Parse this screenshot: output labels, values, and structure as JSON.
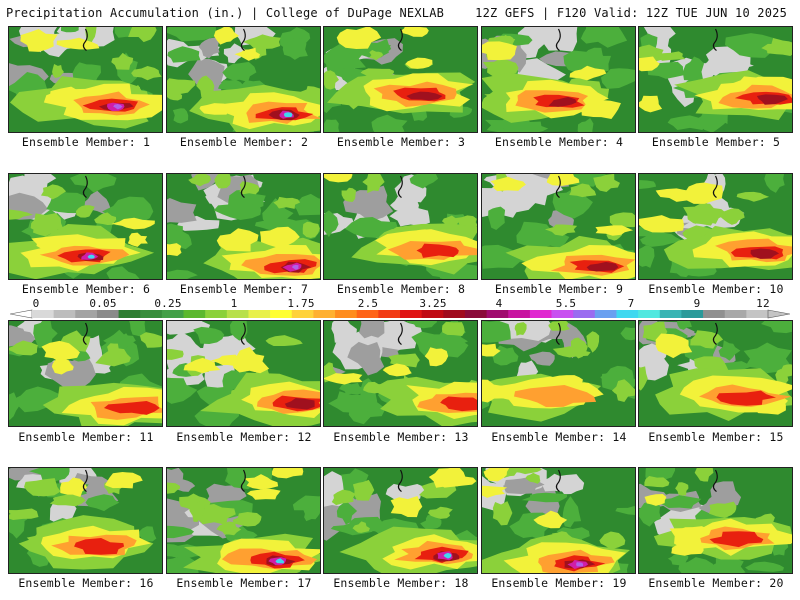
{
  "header": {
    "left": "Precipitation Accumulation (in.) | College of DuPage NEXLAB",
    "right": "12Z GEFS | F120 Valid: 12Z TUE JUN 10 2025"
  },
  "members": [
    {
      "label": "Ensemble Member: 1"
    },
    {
      "label": "Ensemble Member: 2"
    },
    {
      "label": "Ensemble Member: 3"
    },
    {
      "label": "Ensemble Member: 4"
    },
    {
      "label": "Ensemble Member: 5"
    },
    {
      "label": "Ensemble Member: 6"
    },
    {
      "label": "Ensemble Member: 7"
    },
    {
      "label": "Ensemble Member: 8"
    },
    {
      "label": "Ensemble Member: 9"
    },
    {
      "label": "Ensemble Member: 10"
    },
    {
      "label": "Ensemble Member: 11"
    },
    {
      "label": "Ensemble Member: 12"
    },
    {
      "label": "Ensemble Member: 13"
    },
    {
      "label": "Ensemble Member: 14"
    },
    {
      "label": "Ensemble Member: 15"
    },
    {
      "label": "Ensemble Member: 16"
    },
    {
      "label": "Ensemble Member: 17"
    },
    {
      "label": "Ensemble Member: 18"
    },
    {
      "label": "Ensemble Member: 19"
    },
    {
      "label": "Ensemble Member: 20"
    }
  ],
  "colorbar": {
    "tick_labels": [
      "0",
      "0.05",
      "0.25",
      "1",
      "1.75",
      "2.5",
      "3.25",
      "4",
      "5.5",
      "7",
      "9",
      "12"
    ],
    "colors": [
      "#d9d9d9",
      "#bdbdbd",
      "#a3a3a3",
      "#8a8a8a",
      "#2e7d32",
      "#388e3c",
      "#43a047",
      "#5cb82e",
      "#8bd13a",
      "#b8e04a",
      "#e8f04a",
      "#ffff33",
      "#ffd23a",
      "#ffb030",
      "#ff8c1e",
      "#ff6418",
      "#f23c14",
      "#e01414",
      "#c00a14",
      "#a00a1e",
      "#8a0a3a",
      "#a00a6e",
      "#c814a0",
      "#e028d0",
      "#c850f0",
      "#9a6cf0",
      "#6aa0f0",
      "#40d8f0",
      "#50e8e0",
      "#38b4b4",
      "#2a9a9a",
      "#909090",
      "#a8a8a8",
      "#c4c4c4"
    ]
  },
  "map_palette": {
    "gray_light": "#d4d4d4",
    "gray_mid": "#9e9e9e",
    "green_dark": "#2f8a2f",
    "green_mid": "#4caf3c",
    "green_light": "#8bd13a",
    "yellow": "#f2f23a",
    "orange": "#ffa030",
    "red": "#e8200f",
    "darkred": "#a0101e",
    "magenta": "#d01ea8",
    "purple": "#b060e8",
    "cyan": "#40d8f0"
  }
}
